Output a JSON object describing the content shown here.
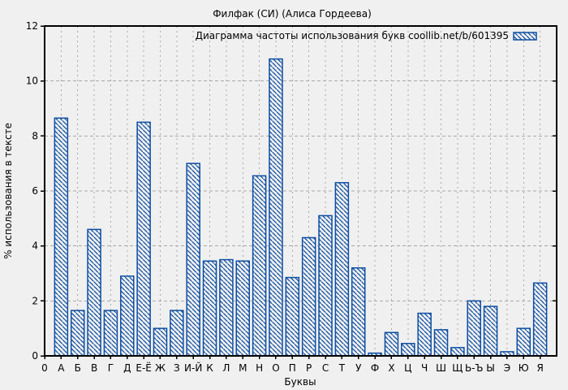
{
  "chart_data": {
    "type": "bar",
    "title": "Филфак (СИ) (Алиса Гордеева)",
    "legend_label": "Диаграмма частоты использования букв coollib.net/b/601395",
    "legend_position": "top-right-inside",
    "xlabel": "Буквы",
    "ylabel": "% использования в тексте",
    "x_origin_label": "0",
    "categories": [
      "А",
      "Б",
      "В",
      "Г",
      "Д",
      "Е-Ё",
      "Ж",
      "З",
      "И-Й",
      "К",
      "Л",
      "М",
      "Н",
      "О",
      "П",
      "Р",
      "С",
      "Т",
      "У",
      "Ф",
      "Х",
      "Ц",
      "Ч",
      "Ш",
      "Щ",
      "Ь-Ъ",
      "Ы",
      "Э",
      "Ю",
      "Я"
    ],
    "values": [
      8.65,
      1.65,
      4.6,
      1.65,
      2.9,
      8.5,
      1.0,
      1.65,
      7.0,
      3.45,
      3.5,
      3.45,
      6.55,
      10.8,
      2.85,
      4.3,
      5.1,
      6.3,
      3.2,
      0.1,
      0.85,
      0.45,
      1.55,
      0.95,
      0.3,
      2.0,
      1.8,
      0.15,
      1.0,
      2.65
    ],
    "ylim": [
      0,
      12
    ],
    "yticks": [
      0,
      2,
      4,
      6,
      8,
      10,
      12
    ],
    "grid": true,
    "bar_fill_style": "diagonal-hatch",
    "colors": {
      "bar": "#0c4da2",
      "bar_fill_bg": "#f0f0f0",
      "grid": "#a8a8a8",
      "axis": "#000000",
      "text": "#000000",
      "background": "#f0f0f0"
    }
  }
}
